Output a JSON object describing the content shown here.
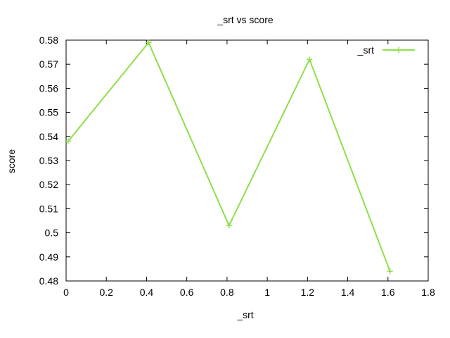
{
  "chart_data": {
    "type": "line",
    "title": "_srt vs score",
    "xlabel": "_srt",
    "ylabel": "score",
    "xlim": [
      0,
      1.8
    ],
    "ylim": [
      0.48,
      0.58
    ],
    "xticks": [
      "0",
      "0.2",
      "0.4",
      "0.6",
      "0.8",
      "1",
      "1.2",
      "1.4",
      "1.6",
      "1.8"
    ],
    "yticks": [
      "0.48",
      "0.49",
      "0.5",
      "0.51",
      "0.52",
      "0.53",
      "0.54",
      "0.55",
      "0.56",
      "0.57",
      "0.58"
    ],
    "grid": false,
    "legend_position": "top-right",
    "series": [
      {
        "name": "_srt",
        "color": "#8ee04a",
        "marker": "plus",
        "x": [
          0.01,
          0.41,
          0.81,
          1.21,
          1.61
        ],
        "y": [
          0.538,
          0.579,
          0.503,
          0.572,
          0.484
        ]
      }
    ]
  }
}
